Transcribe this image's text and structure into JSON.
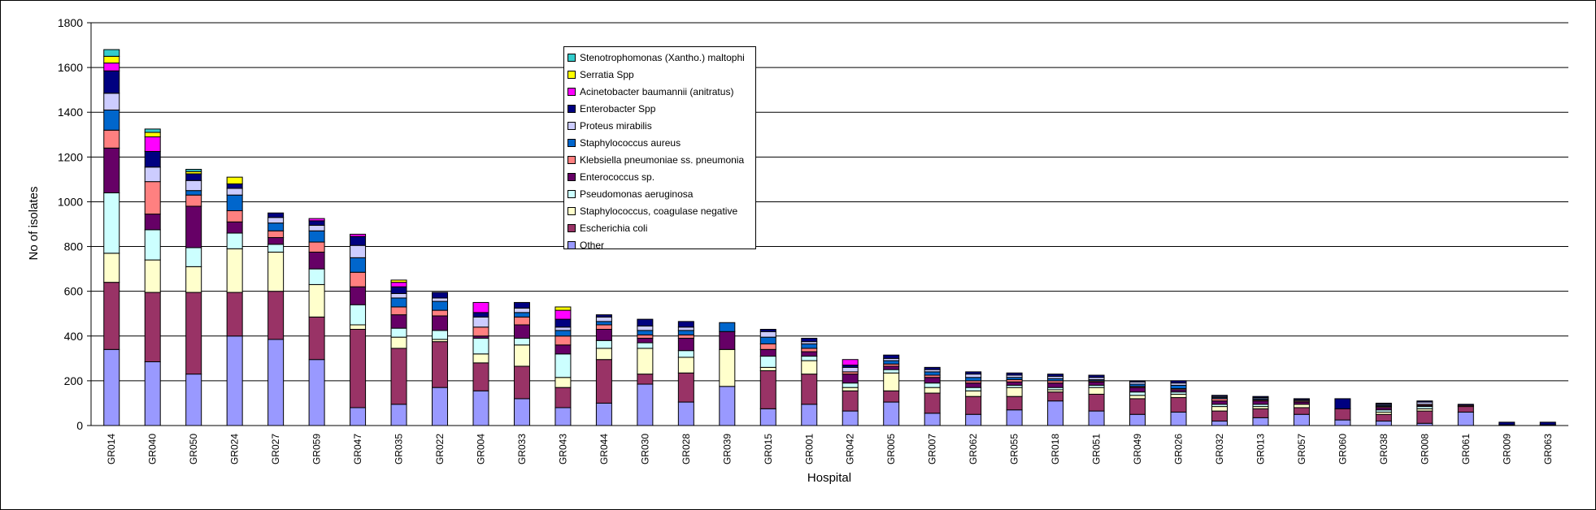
{
  "chart_data": {
    "type": "bar",
    "stacked": true,
    "xlabel": "Hospital",
    "ylabel": "No of isolates",
    "ylim": [
      0,
      1800
    ],
    "yticks": [
      "0",
      "200",
      "400",
      "600",
      "800",
      "1000",
      "1200",
      "1400",
      "1600",
      "1800"
    ],
    "grid": true,
    "legend_position": "top-center",
    "categories": [
      "GR014",
      "GR040",
      "GR050",
      "GR024",
      "GR027",
      "GR059",
      "GR047",
      "GR035",
      "GR022",
      "GR004",
      "GR033",
      "GR043",
      "GR044",
      "GR030",
      "GR028",
      "GR039",
      "GR015",
      "GR001",
      "GR042",
      "GR005",
      "GR007",
      "GR062",
      "GR055",
      "GR018",
      "GR051",
      "GR049",
      "GR026",
      "GR032",
      "GR013",
      "GR057",
      "GR060",
      "GR038",
      "GR008",
      "GR061",
      "GR009",
      "GR063"
    ],
    "series": [
      {
        "name": "Other",
        "color": "#9999FF",
        "values": [
          340,
          285,
          230,
          400,
          385,
          295,
          80,
          95,
          170,
          155,
          120,
          80,
          100,
          185,
          105,
          175,
          75,
          95,
          65,
          105,
          55,
          50,
          70,
          110,
          65,
          50,
          60,
          20,
          35,
          50,
          25,
          20,
          10,
          60,
          3,
          3
        ]
      },
      {
        "name": "Escherichia coli",
        "color": "#993366",
        "values": [
          300,
          310,
          365,
          195,
          215,
          190,
          350,
          250,
          205,
          125,
          145,
          90,
          195,
          45,
          130,
          0,
          170,
          135,
          90,
          50,
          90,
          80,
          60,
          40,
          75,
          70,
          65,
          45,
          40,
          30,
          50,
          30,
          55,
          25,
          0,
          0
        ]
      },
      {
        "name": "Staphylococcus, coagulase negative",
        "color": "#FFFFCC",
        "values": [
          130,
          145,
          115,
          195,
          175,
          145,
          20,
          50,
          10,
          40,
          95,
          45,
          50,
          115,
          70,
          165,
          15,
          60,
          15,
          80,
          25,
          25,
          40,
          10,
          30,
          15,
          15,
          20,
          10,
          15,
          0,
          10,
          10,
          0,
          0,
          0
        ]
      },
      {
        "name": "Pseudomonas aeruginosa",
        "color": "#CCFFFF",
        "values": [
          270,
          135,
          85,
          70,
          35,
          70,
          90,
          40,
          40,
          70,
          30,
          105,
          35,
          25,
          30,
          0,
          50,
          20,
          20,
          15,
          20,
          15,
          10,
          10,
          10,
          15,
          10,
          10,
          10,
          0,
          0,
          10,
          10,
          0,
          0,
          0
        ]
      },
      {
        "name": "Enterococcus sp.",
        "color": "#660066",
        "values": [
          200,
          70,
          185,
          50,
          30,
          75,
          80,
          60,
          65,
          10,
          60,
          40,
          50,
          20,
          55,
          80,
          30,
          20,
          40,
          15,
          25,
          20,
          15,
          20,
          15,
          20,
          10,
          15,
          15,
          10,
          0,
          10,
          5,
          0,
          0,
          0
        ]
      },
      {
        "name": "Klebsiella pneumoniae ss. pneumonia",
        "color": "#FF8080",
        "values": [
          80,
          145,
          50,
          50,
          30,
          45,
          65,
          35,
          25,
          40,
          35,
          40,
          20,
          15,
          15,
          0,
          25,
          15,
          10,
          10,
          10,
          10,
          10,
          10,
          5,
          5,
          5,
          10,
          5,
          5,
          0,
          5,
          5,
          5,
          0,
          0
        ]
      },
      {
        "name": "Staphylococcus aureus",
        "color": "#0066CC",
        "values": [
          90,
          0,
          20,
          70,
          35,
          50,
          65,
          40,
          40,
          0,
          20,
          25,
          15,
          20,
          20,
          40,
          30,
          20,
          0,
          15,
          15,
          15,
          10,
          10,
          5,
          10,
          15,
          5,
          5,
          0,
          0,
          5,
          0,
          0,
          0,
          0
        ]
      },
      {
        "name": "Proteus mirabilis",
        "color": "#CCCCFF",
        "values": [
          75,
          65,
          45,
          30,
          25,
          25,
          55,
          20,
          15,
          45,
          20,
          15,
          20,
          20,
          15,
          0,
          25,
          10,
          20,
          10,
          10,
          15,
          10,
          10,
          10,
          10,
          10,
          5,
          5,
          5,
          0,
          5,
          10,
          0,
          0,
          0
        ]
      },
      {
        "name": "Enterobacter Spp",
        "color": "#000080",
        "values": [
          100,
          70,
          30,
          20,
          20,
          20,
          40,
          30,
          25,
          20,
          25,
          35,
          10,
          30,
          25,
          0,
          10,
          15,
          10,
          15,
          10,
          10,
          10,
          10,
          10,
          5,
          10,
          5,
          5,
          5,
          45,
          5,
          5,
          5,
          12,
          12
        ]
      },
      {
        "name": "Acinetobacter baumannii (anitratus)",
        "color": "#FF00FF",
        "values": [
          35,
          65,
          0,
          0,
          0,
          10,
          10,
          20,
          0,
          45,
          0,
          40,
          0,
          0,
          0,
          0,
          0,
          0,
          25,
          0,
          0,
          0,
          0,
          0,
          0,
          0,
          0,
          0,
          0,
          0,
          0,
          0,
          0,
          0,
          0,
          0
        ]
      },
      {
        "name": "Serratia Spp",
        "color": "#FFFF00",
        "values": [
          30,
          20,
          10,
          30,
          0,
          0,
          0,
          10,
          0,
          0,
          0,
          15,
          0,
          0,
          0,
          0,
          0,
          0,
          0,
          0,
          0,
          0,
          0,
          0,
          0,
          0,
          0,
          0,
          0,
          0,
          0,
          0,
          0,
          0,
          0,
          0
        ]
      },
      {
        "name": "Stenotrophomonas (Xantho.) maltophi",
        "color": "#33CCCC",
        "values": [
          30,
          15,
          10,
          0,
          0,
          0,
          0,
          0,
          0,
          0,
          0,
          0,
          0,
          0,
          0,
          0,
          0,
          0,
          0,
          0,
          0,
          0,
          0,
          0,
          0,
          0,
          0,
          0,
          0,
          0,
          0,
          0,
          0,
          0,
          0,
          0
        ]
      }
    ]
  }
}
